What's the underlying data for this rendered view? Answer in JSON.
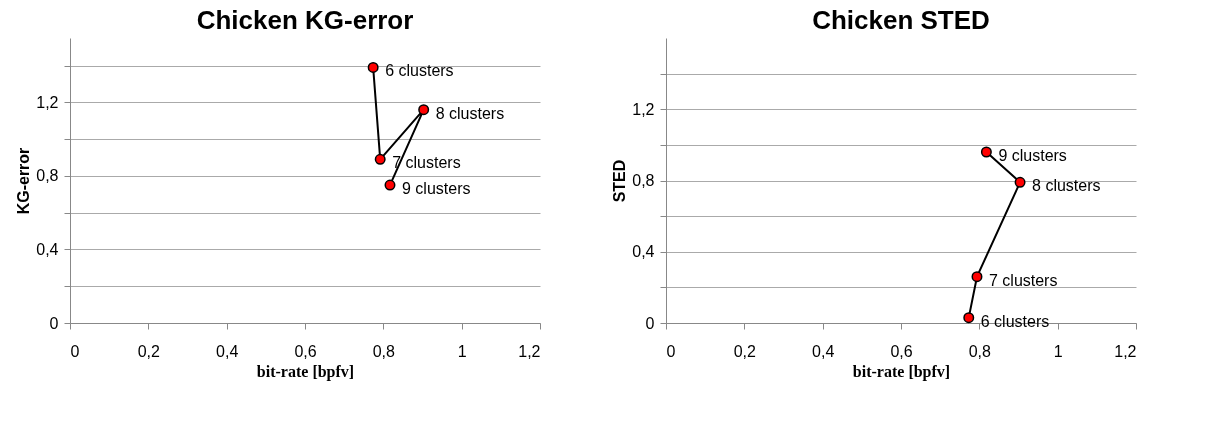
{
  "chart_data": [
    {
      "type": "line",
      "title": "Chicken KG-error",
      "xlabel": "bit-rate [bpfv]",
      "ylabel": "KG-error",
      "marker": "circle",
      "line_style": "solid",
      "grid": "y",
      "x": [
        0.774,
        0.792,
        0.903,
        0.817
      ],
      "series": [
        {
          "color": "#ff0000",
          "values": [
            1.39,
            0.89,
            1.16,
            0.75
          ]
        }
      ],
      "xlim": [
        0,
        1.2
      ],
      "ylim": [
        0,
        1.55
      ],
      "xticks": [
        0,
        {
          "value": 0.2,
          "label": "0,2"
        },
        {
          "value": 0.4,
          "label": "0,4"
        },
        {
          "value": 0.6,
          "label": "0,6"
        },
        {
          "value": 0.8,
          "label": "0,8"
        },
        1,
        {
          "value": 1.2,
          "label": "1,2"
        }
      ],
      "yticks": [
        0,
        {
          "value": 0.2,
          "label": null
        },
        {
          "value": 0.4,
          "label": "0,4"
        },
        {
          "value": 0.6,
          "label": null
        },
        {
          "value": 0.8,
          "label": "0,8"
        },
        {
          "value": 1.0,
          "label": null
        },
        {
          "value": 1.2,
          "label": "1,2"
        },
        {
          "value": 1.4,
          "label": null
        }
      ],
      "annotations": [
        {
          "text": "6 clusters",
          "x": 0.774,
          "y": 1.39
        },
        {
          "text": "7 clusters",
          "x": 0.792,
          "y": 0.89
        },
        {
          "text": "8 clusters",
          "x": 0.903,
          "y": 1.16
        },
        {
          "text": "9 clusters",
          "x": 0.817,
          "y": 0.75
        }
      ]
    },
    {
      "type": "line",
      "title": "Chicken STED",
      "xlabel": "bit-rate [bpfv]",
      "ylabel": "STED",
      "marker": "circle",
      "line_style": "solid",
      "grid": "y",
      "x": [
        0.773,
        0.794,
        0.904,
        0.818
      ],
      "series": [
        {
          "color": "#ff0000",
          "values": [
            0.03,
            0.26,
            0.79,
            0.96
          ]
        }
      ],
      "xlim": [
        0,
        1.2
      ],
      "ylim": [
        0,
        1.6
      ],
      "xticks": [
        0,
        {
          "value": 0.2,
          "label": "0,2"
        },
        {
          "value": 0.4,
          "label": "0,4"
        },
        {
          "value": 0.6,
          "label": "0,6"
        },
        {
          "value": 0.8,
          "label": "0,8"
        },
        1,
        {
          "value": 1.2,
          "label": "1,2"
        }
      ],
      "yticks": [
        0,
        {
          "value": 0.2,
          "label": null
        },
        {
          "value": 0.4,
          "label": "0,4"
        },
        {
          "value": 0.6,
          "label": null
        },
        {
          "value": 0.8,
          "label": "0,8"
        },
        {
          "value": 1.0,
          "label": null
        },
        {
          "value": 1.2,
          "label": "1,2"
        },
        {
          "value": 1.4,
          "label": null
        }
      ],
      "annotations": [
        {
          "text": "6 clusters",
          "x": 0.773,
          "y": 0.03
        },
        {
          "text": "7 clusters",
          "x": 0.794,
          "y": 0.26
        },
        {
          "text": "8 clusters",
          "x": 0.904,
          "y": 0.79
        },
        {
          "text": "9 clusters",
          "x": 0.818,
          "y": 0.96
        }
      ]
    }
  ]
}
